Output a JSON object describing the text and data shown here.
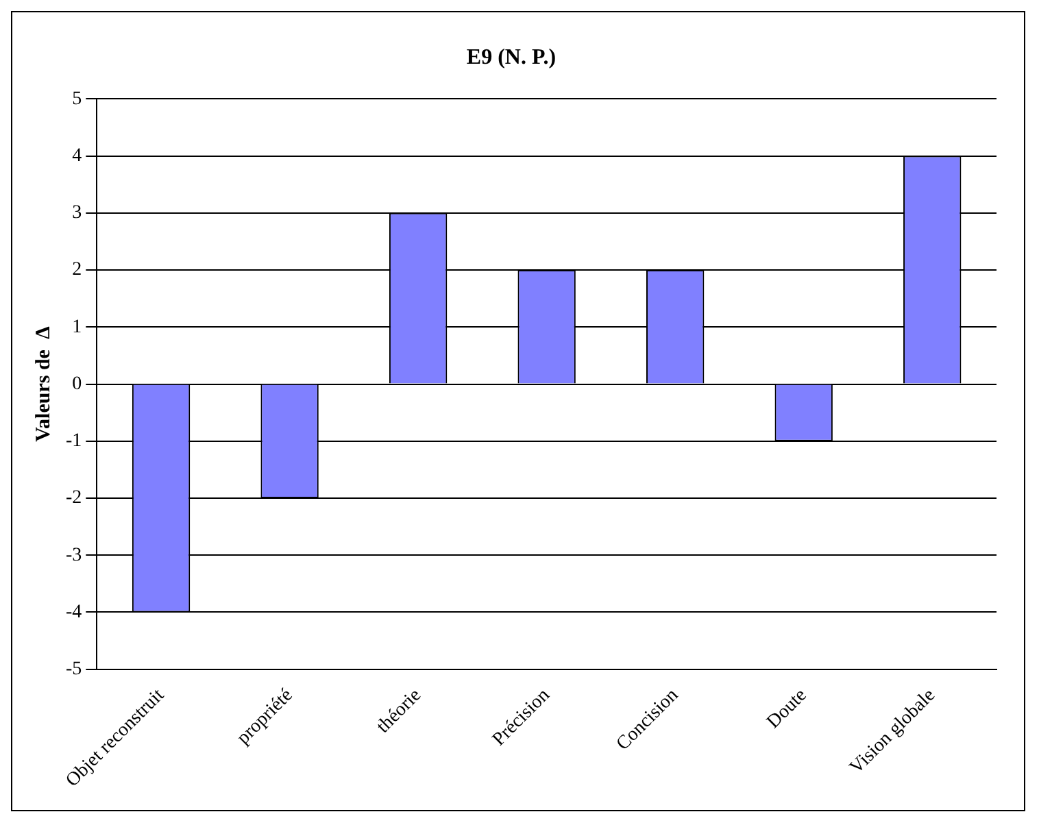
{
  "chart_data": {
    "type": "bar",
    "title": "E9 (N. P.)",
    "ylabel": "Valeurs de  Δ",
    "categories": [
      "Objet reconstruit",
      "propriété",
      "théorie",
      "Précision",
      "Concision",
      "Doute",
      "Vision globale"
    ],
    "values": [
      -4,
      -2,
      3,
      2,
      2,
      -1,
      4
    ],
    "color": "#8080ff",
    "ylim": [
      -5,
      5
    ],
    "yticks": [
      -5,
      -4,
      -3,
      -2,
      -1,
      0,
      1,
      2,
      3,
      4,
      5
    ],
    "grid": "y",
    "legend": false
  }
}
